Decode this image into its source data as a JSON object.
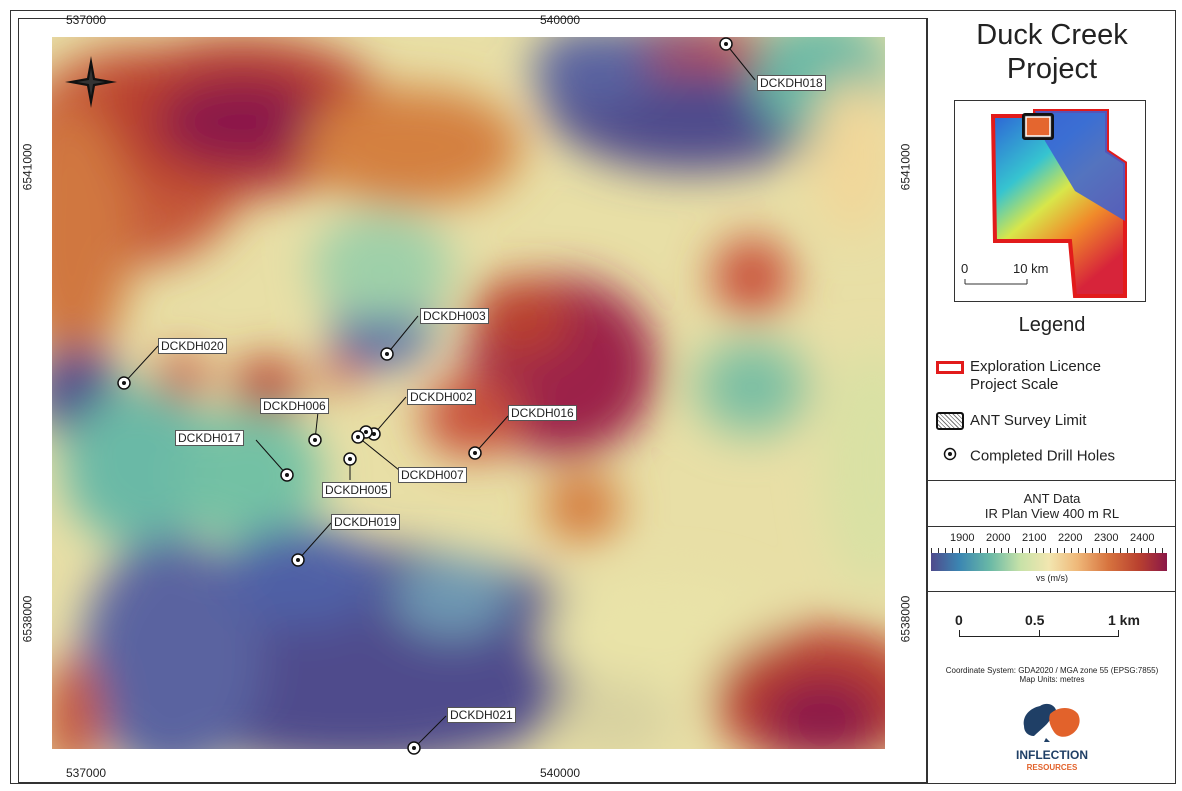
{
  "map": {
    "coords": {
      "top_x_left": "537000",
      "top_x_mid": "540000",
      "bottom_x_left": "537000",
      "bottom_x_mid": "540000",
      "left_y_top": "6541000",
      "left_y_bottom": "6538000",
      "right_y_top": "6541000",
      "right_y_bottom": "6538000"
    },
    "drill_holes": [
      "DCKDH018",
      "DCKDH003",
      "DCKDH020",
      "DCKDH002",
      "DCKDH016",
      "DCKDH006",
      "DCKDH017",
      "DCKDH007",
      "DCKDH005",
      "DCKDH019",
      "DCKDH021"
    ],
    "north_arrow": "north-arrow-icon"
  },
  "panel": {
    "title_line1": "Duck Creek",
    "title_line2": "Project",
    "inset_scale_zero": "0",
    "inset_scale_label": "10 km",
    "legend_title": "Legend",
    "legend_items": {
      "licence": "Exploration Licence",
      "licence2": "Project Scale",
      "ant_limit": "ANT Survey Limit",
      "holes": "Completed Drill Holes"
    },
    "ant_title1": "ANT Data",
    "ant_title2": "IR Plan View 400 m RL",
    "colorbar_ticks": [
      "1900",
      "2000",
      "2100",
      "2200",
      "2300",
      "2400"
    ],
    "colorbar_unit": "vs (m/s)",
    "scale_labels": [
      "0",
      "0.5",
      "1 km"
    ],
    "coord_system": "Coordinate System: GDA2020 / MGA zone 55 (EPSG:7855)",
    "map_units": "Map Units: metres",
    "logo_text1": "INFLECTION",
    "logo_text2": "RESOURCES"
  },
  "colors": {
    "high": "#8b1848",
    "mid_high": "#c9513a",
    "mid": "#f2e6b0",
    "mid_low": "#6ab9a6",
    "low": "#4f4b8c",
    "licence_red": "#e21b1b",
    "logo_blue": "#1f3f66",
    "logo_orange": "#e2622b"
  }
}
